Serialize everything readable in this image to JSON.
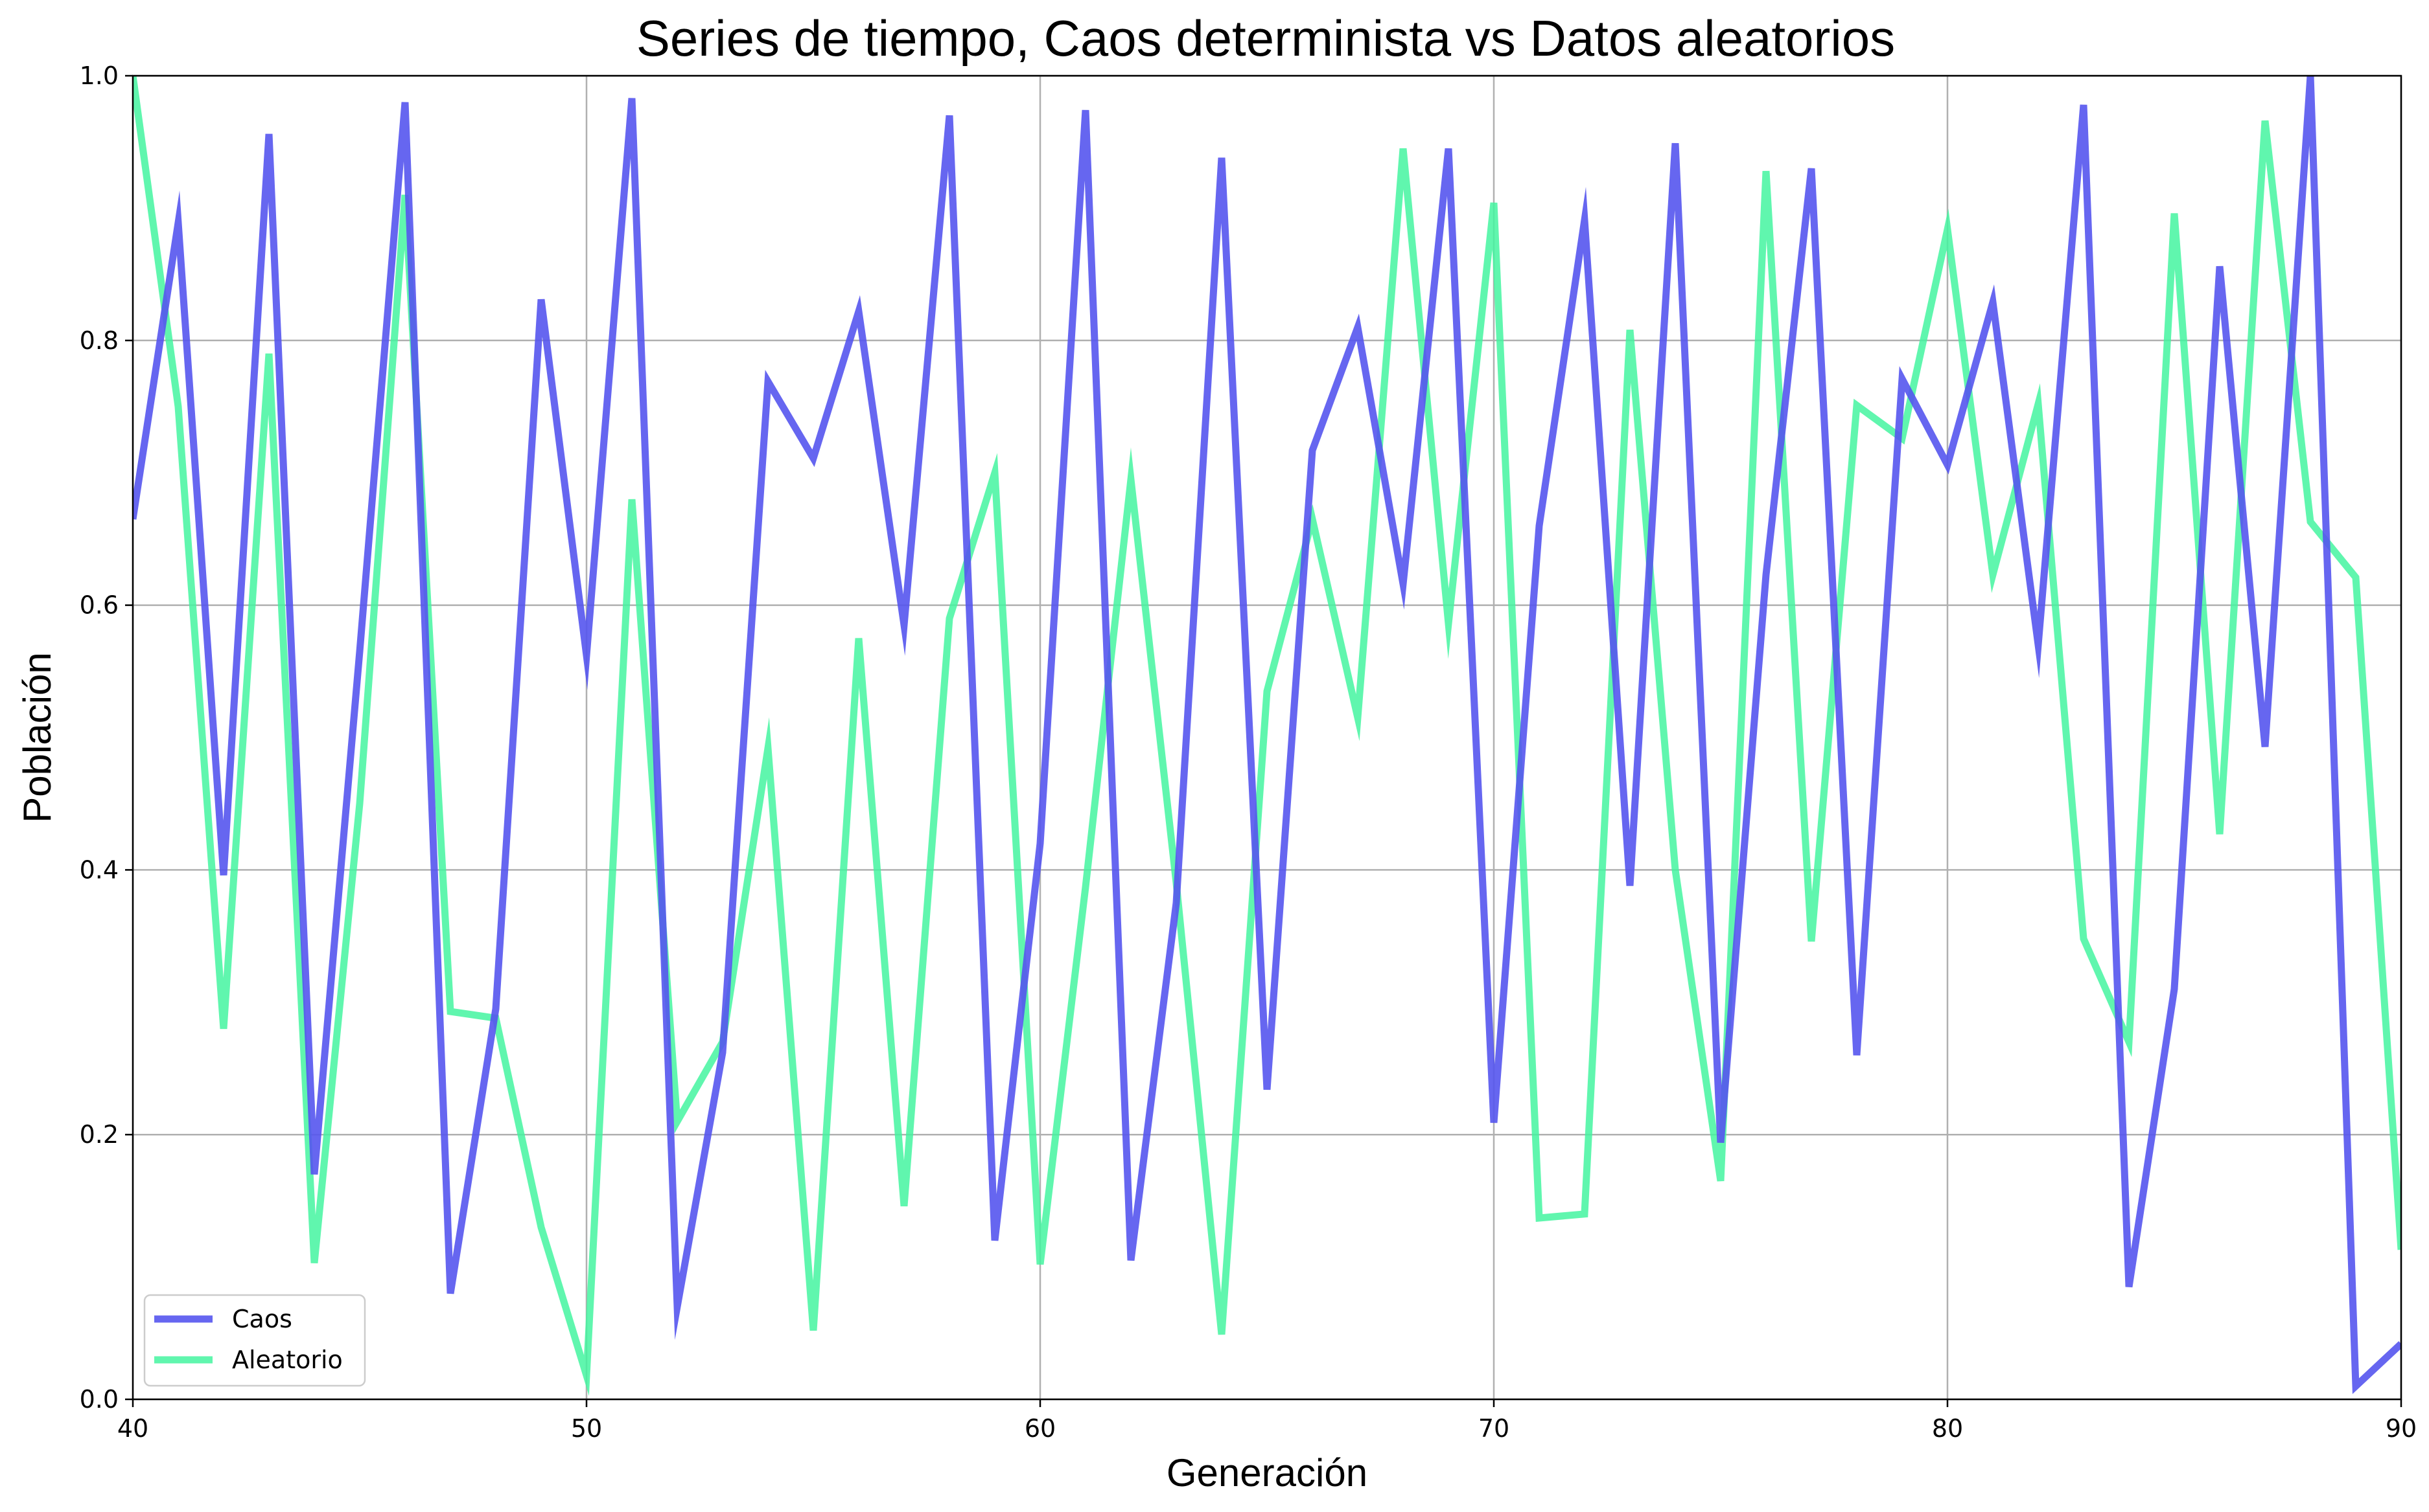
{
  "chart_data": {
    "type": "line",
    "title": "Series de tiempo, Caos determinista vs Datos aleatorios",
    "xlabel": "Generación",
    "ylabel": "Población",
    "xlim": [
      40,
      90
    ],
    "ylim": [
      0,
      1
    ],
    "x_ticks": [
      "40",
      "50",
      "60",
      "70",
      "80",
      "90"
    ],
    "y_ticks": [
      "0.0",
      "0.2",
      "0.4",
      "0.6",
      "0.8",
      "1.0"
    ],
    "grid": true,
    "legend_position": "lower-left",
    "x": [
      40,
      41,
      42,
      43,
      44,
      45,
      46,
      47,
      48,
      49,
      50,
      51,
      52,
      53,
      54,
      55,
      56,
      57,
      58,
      59,
      60,
      61,
      62,
      63,
      64,
      65,
      66,
      67,
      68,
      69,
      70,
      71,
      72,
      73,
      74,
      75,
      76,
      77,
      78,
      79,
      80,
      81,
      82,
      83,
      84,
      85,
      86,
      87,
      88,
      89,
      90
    ],
    "series": [
      {
        "name": "Caos",
        "color": "#5555ee",
        "values": [
          0.665,
          0.889,
          0.396,
          0.956,
          0.17,
          0.565,
          0.98,
          0.08,
          0.295,
          0.831,
          0.562,
          0.983,
          0.07,
          0.262,
          0.769,
          0.711,
          0.822,
          0.585,
          0.97,
          0.12,
          0.42,
          0.974,
          0.105,
          0.375,
          0.938,
          0.234,
          0.717,
          0.81,
          0.616,
          0.945,
          0.209,
          0.66,
          0.891,
          0.388,
          0.949,
          0.194,
          0.623,
          0.93,
          0.26,
          0.771,
          0.706,
          0.829,
          0.57,
          0.978,
          0.085,
          0.31,
          0.856,
          0.493,
          1.0,
          0.01,
          0.042
        ]
      },
      {
        "name": "Aleatorio",
        "color": "#44f5a0",
        "values": [
          1.0,
          0.75,
          0.28,
          0.79,
          0.103,
          0.45,
          0.91,
          0.293,
          0.288,
          0.13,
          0.018,
          0.68,
          0.21,
          0.27,
          0.492,
          0.052,
          0.575,
          0.146,
          0.59,
          0.7,
          0.102,
          0.387,
          0.695,
          0.39,
          0.049,
          0.535,
          0.665,
          0.515,
          0.945,
          0.586,
          0.904,
          0.137,
          0.14,
          0.808,
          0.4,
          0.165,
          0.928,
          0.346,
          0.751,
          0.726,
          0.884,
          0.623,
          0.752,
          0.348,
          0.27,
          0.896,
          0.427,
          0.966,
          0.663,
          0.621,
          0.113
        ]
      }
    ]
  }
}
